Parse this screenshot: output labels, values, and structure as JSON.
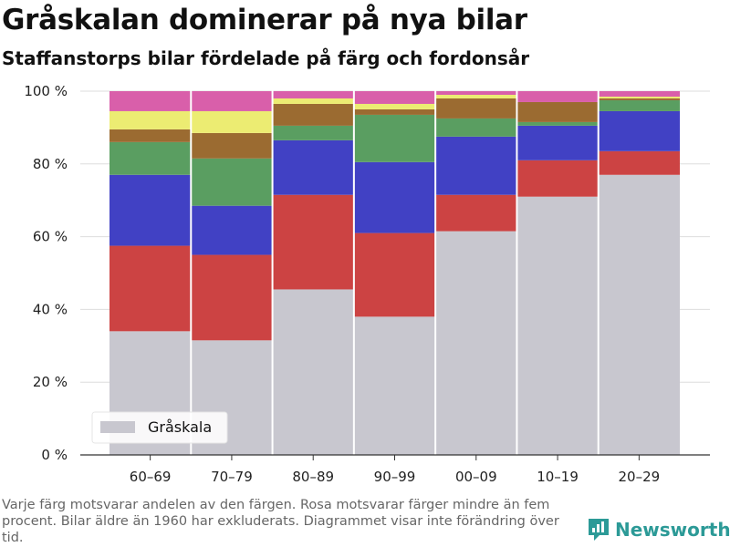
{
  "header": {
    "title": "Gråskalan dominerar på nya bilar",
    "subtitle": "Staffanstorps bilar fördelade på färg och fordonsår"
  },
  "footnote": "Varje färg motsvarar andelen av den färgen. Rosa motsvarar färger mindre än fem procent. Bilar äldre än 1960 har exkluderats. Diagrammet visar inte förändring över tid.",
  "brand": {
    "name": "Newsworthy",
    "icon": "newsworthy-logo-icon",
    "color": "#2c9a97"
  },
  "chart_data": {
    "type": "bar",
    "stacked": true,
    "normalized": true,
    "categories": [
      "60–69",
      "70–79",
      "80–89",
      "90–99",
      "00–09",
      "10–19",
      "20–29"
    ],
    "ylim": [
      0,
      100
    ],
    "yticks": [
      0,
      20,
      40,
      60,
      80,
      100
    ],
    "ytick_labels": [
      "0 %",
      "20 %",
      "40 %",
      "60 %",
      "80 %",
      "100 %"
    ],
    "grid": true,
    "legend": {
      "position": "bottom-left",
      "entries": [
        "Gråskala"
      ]
    },
    "series": [
      {
        "name": "Gråskala",
        "color": "#c8c7cf",
        "values": [
          34,
          31.5,
          45.5,
          38,
          61.5,
          71,
          77
        ]
      },
      {
        "color": "#cc4343",
        "values": [
          23.5,
          23.5,
          26,
          23,
          10,
          10,
          6.5
        ]
      },
      {
        "color": "#4141c4",
        "values": [
          19.5,
          13.5,
          15,
          19.5,
          16,
          9.5,
          11
        ]
      },
      {
        "color": "#5a9e61",
        "values": [
          9,
          13,
          4,
          13,
          5,
          1,
          3
        ]
      },
      {
        "color": "#9b6b31",
        "values": [
          3.5,
          7,
          6,
          1.5,
          5.5,
          5.5,
          0.5
        ]
      },
      {
        "color": "#ecec72",
        "values": [
          5,
          6,
          1.5,
          1.5,
          1,
          0,
          0.5
        ]
      },
      {
        "color": "#d95faa",
        "values": [
          5.5,
          5.5,
          2,
          3.5,
          1,
          3,
          1.5
        ]
      }
    ]
  }
}
